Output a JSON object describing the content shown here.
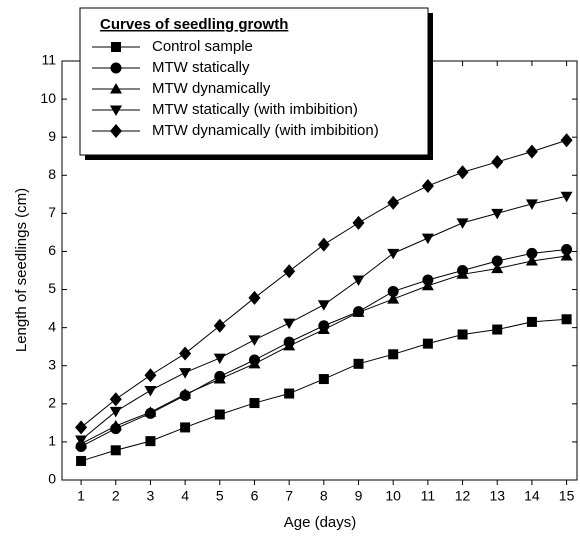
{
  "chart_data": {
    "type": "line",
    "x_label": "Age (days)",
    "y_label": "Length of seedlings (cm)",
    "legend_title": "Curves of seedling growth",
    "x": [
      1,
      2,
      3,
      4,
      5,
      6,
      7,
      8,
      9,
      10,
      11,
      12,
      13,
      14,
      15
    ],
    "xlim": [
      0.45,
      15.3
    ],
    "xticks": [
      1,
      2,
      3,
      4,
      5,
      6,
      7,
      8,
      9,
      10,
      11,
      12,
      13,
      14,
      15
    ],
    "ylim": [
      0,
      11
    ],
    "yticks": [
      0,
      1,
      2,
      3,
      4,
      5,
      6,
      7,
      8,
      9,
      10,
      11
    ],
    "legend": "upper left",
    "series": [
      {
        "name": "Control sample",
        "color": "#000000",
        "marker": "square",
        "values": [
          0.5,
          0.78,
          1.02,
          1.38,
          1.72,
          2.02,
          2.27,
          2.65,
          3.05,
          3.3,
          3.58,
          3.82,
          3.95,
          4.15,
          4.22
        ]
      },
      {
        "name": "MTW statically",
        "color": "#000000",
        "marker": "circle",
        "values": [
          0.88,
          1.35,
          1.75,
          2.22,
          2.72,
          3.15,
          3.62,
          4.05,
          4.42,
          4.95,
          5.25,
          5.5,
          5.75,
          5.95,
          6.05
        ]
      },
      {
        "name": "MTW dynamically",
        "color": "#000000",
        "marker": "triangle-up",
        "values": [
          0.95,
          1.42,
          1.78,
          2.25,
          2.65,
          3.05,
          3.52,
          3.95,
          4.4,
          4.75,
          5.1,
          5.4,
          5.55,
          5.75,
          5.88
        ]
      },
      {
        "name": "MTW statically (with imbibition)",
        "color": "#000000",
        "marker": "triangle-down",
        "values": [
          1.05,
          1.8,
          2.35,
          2.82,
          3.2,
          3.68,
          4.12,
          4.6,
          5.25,
          5.95,
          6.35,
          6.75,
          7.0,
          7.25,
          7.45
        ]
      },
      {
        "name": "MTW dynamically (with imbibition)",
        "color": "#000000",
        "marker": "diamond",
        "values": [
          1.38,
          2.12,
          2.75,
          3.32,
          4.05,
          4.78,
          5.48,
          6.18,
          6.75,
          7.28,
          7.72,
          8.08,
          8.35,
          8.62,
          8.92
        ]
      }
    ]
  }
}
